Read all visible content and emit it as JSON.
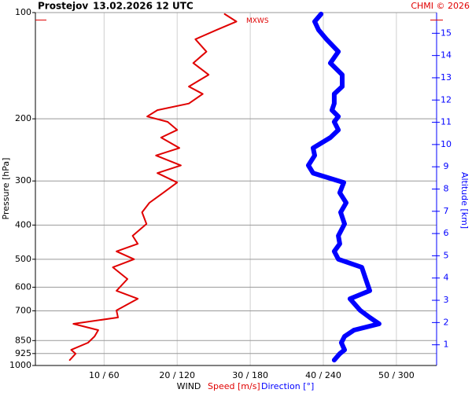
{
  "chart_data": {
    "type": "line",
    "title": "Prostejov",
    "subtitle": "13.02.2026 12 UTC",
    "credit": "CHMI © 2026",
    "y_label": "Pressure [hPa]",
    "y2_label": "Altitude [km]",
    "x_label": "WIND",
    "pressure": [
      965,
      926,
      903,
      862,
      827,
      794,
      762,
      731,
      698,
      647,
      614,
      569,
      527,
      500,
      475,
      452,
      429,
      397,
      368,
      346,
      324,
      303,
      285,
      271,
      254,
      242,
      226,
      215,
      204,
      197,
      189,
      181,
      170,
      162,
      150,
      139,
      129,
      119,
      112,
      106,
      101
    ],
    "series": [
      {
        "name": "Speed [m/s]",
        "color": "#e00000",
        "axis": "x",
        "values": [
          5.3,
          6.1,
          5.5,
          7.8,
          8.7,
          9.2,
          5.8,
          11.9,
          11.7,
          14.6,
          11.7,
          13.2,
          11.2,
          14.1,
          11.7,
          14.6,
          13.9,
          15.8,
          15.2,
          16.2,
          18.1,
          20.0,
          17.3,
          20.5,
          17.1,
          20.3,
          17.8,
          20.0,
          18.7,
          15.9,
          17.3,
          21.6,
          23.5,
          21.6,
          24.3,
          22.2,
          24.0,
          22.5,
          25.4,
          28.1,
          26.5
        ]
      },
      {
        "name": "Direction [°]",
        "color": "#0000ff",
        "axis": "x2",
        "values": [
          249.0,
          253.5,
          257.4,
          254.8,
          257.4,
          265.2,
          285.8,
          278.1,
          270.3,
          261.9,
          278.1,
          274.8,
          271.6,
          252.3,
          249.0,
          253.5,
          252.3,
          257.4,
          254.2,
          258.7,
          253.5,
          256.8,
          231.6,
          227.7,
          232.9,
          231.6,
          245.8,
          252.3,
          249.0,
          252.3,
          247.1,
          249.0,
          249.0,
          255.5,
          255.5,
          245.8,
          252.3,
          242.6,
          236.1,
          232.9,
          238.1
        ]
      }
    ],
    "xlim": [
      0.6,
      55.5
    ],
    "x2lim": [
      3.6,
      333
    ],
    "xticks": [
      {
        "value": 10,
        "label": "10 / 60"
      },
      {
        "value": 20,
        "label": "20 / 120"
      },
      {
        "value": 30,
        "label": "30 / 180"
      },
      {
        "value": 40,
        "label": "40 / 240"
      },
      {
        "value": 50,
        "label": "50 / 300"
      }
    ],
    "ylim": [
      1000,
      100
    ],
    "ylog": true,
    "yticks": [
      100,
      200,
      300,
      400,
      500,
      600,
      700,
      850,
      925,
      1000
    ],
    "y2lim": [
      0.07,
      15.93
    ],
    "y2ticks": [
      1,
      2,
      3,
      4,
      5,
      6,
      7,
      8,
      9,
      10,
      11,
      12,
      13,
      14,
      15
    ],
    "grid": true,
    "annotation": {
      "text": "MXWS",
      "pressure": 105
    }
  }
}
